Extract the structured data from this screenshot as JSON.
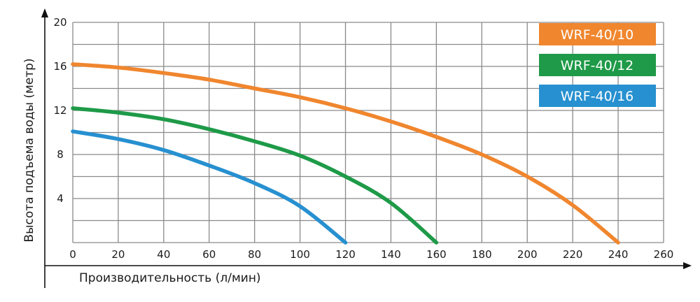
{
  "chart_data": {
    "type": "line",
    "title": "",
    "xlabel": "Производительность (л/мин)",
    "ylabel": "Высота подъема воды (метр)",
    "xlim": [
      0,
      260
    ],
    "ylim": [
      0,
      20
    ],
    "x_ticks": [
      0,
      20,
      40,
      60,
      80,
      100,
      120,
      140,
      160,
      180,
      200,
      220,
      240,
      260
    ],
    "y_ticks": [
      4,
      8,
      12,
      16,
      20
    ],
    "grid": true,
    "legend_position": "top-right",
    "series": [
      {
        "name": "WRF-40/10",
        "color": "#F0862E",
        "x": [
          0,
          20,
          40,
          60,
          80,
          100,
          120,
          140,
          160,
          180,
          200,
          220,
          240
        ],
        "y": [
          16.2,
          15.9,
          15.4,
          14.8,
          14.0,
          13.2,
          12.2,
          11.0,
          9.6,
          8.0,
          6.0,
          3.4,
          0
        ]
      },
      {
        "name": "WRF-40/12",
        "color": "#1E9A48",
        "x": [
          0,
          20,
          40,
          60,
          80,
          100,
          120,
          140,
          160
        ],
        "y": [
          12.2,
          11.8,
          11.2,
          10.3,
          9.2,
          7.9,
          6.0,
          3.6,
          0
        ]
      },
      {
        "name": "WRF-40/16",
        "color": "#2790D0",
        "x": [
          0,
          20,
          40,
          60,
          80,
          100,
          120
        ],
        "y": [
          10.1,
          9.4,
          8.4,
          7.0,
          5.4,
          3.3,
          0
        ]
      }
    ]
  }
}
